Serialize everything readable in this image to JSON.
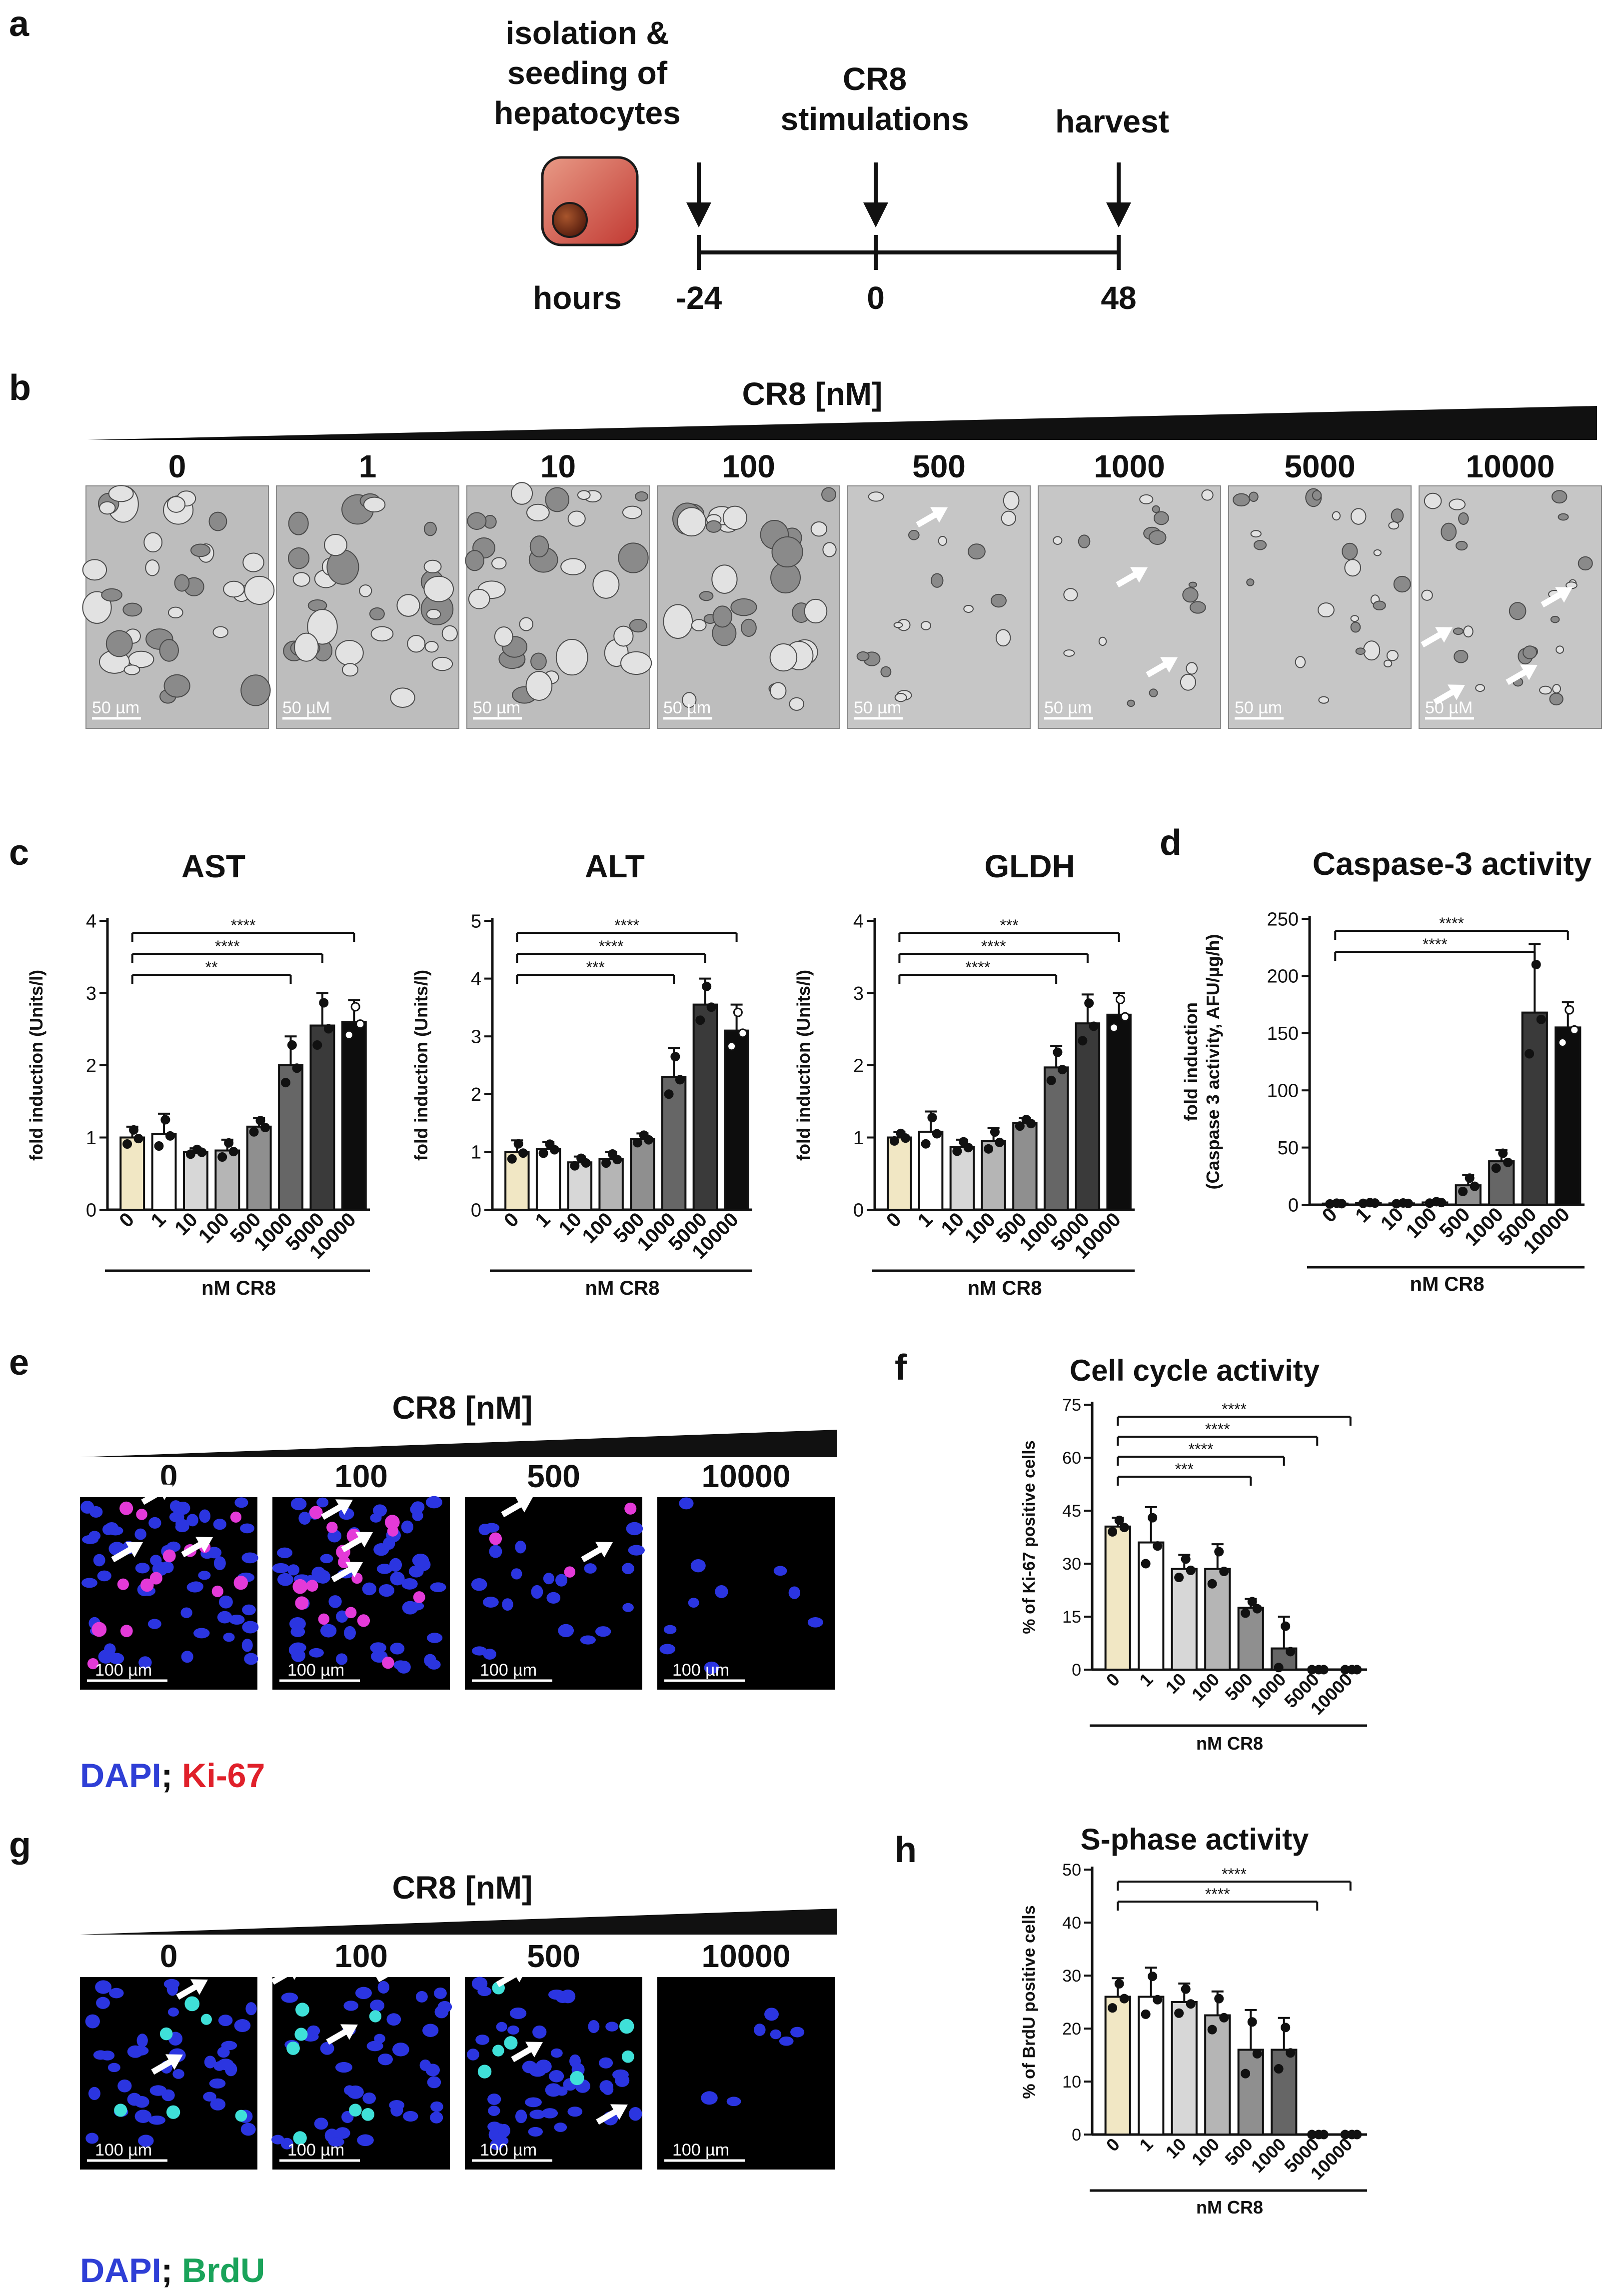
{
  "panels": {
    "a": {
      "letter": "a",
      "isolation_label": [
        "isolation &",
        "seeding of",
        "hepatocytes"
      ],
      "stim_label": [
        "CR8",
        "stimulations"
      ],
      "harvest_label": "harvest",
      "hours_label": "hours",
      "timepoints": [
        "-24",
        "0",
        "48"
      ]
    },
    "b": {
      "letter": "b",
      "title": "CR8 [nM]",
      "concentrations": [
        "0",
        "1",
        "10",
        "100",
        "500",
        "1000",
        "5000",
        "10000"
      ],
      "scalebars": [
        "50 µm",
        "50 µM",
        "50 µm",
        "50 µm",
        "50 µm",
        "50 µm",
        "50 µm",
        "50 µM"
      ]
    },
    "c": {
      "letter": "c"
    },
    "d": {
      "letter": "d"
    },
    "e": {
      "letter": "e",
      "title": "CR8 [nM]",
      "concentrations": [
        "0",
        "100",
        "500",
        "10000"
      ],
      "scalebar": "100 µm",
      "legend": {
        "stain1": "DAPI",
        "sep": ";",
        "stain2": "Ki-67",
        "color1": "#2f3fd6",
        "color2": "#e0202a"
      }
    },
    "f": {
      "letter": "f"
    },
    "g": {
      "letter": "g",
      "title": "CR8 [nM]",
      "concentrations": [
        "0",
        "100",
        "500",
        "10000"
      ],
      "scalebar": "100 µm",
      "legend": {
        "stain1": "DAPI",
        "sep": ";",
        "stain2": "BrdU",
        "color1": "#2f3fd6",
        "color2": "#1aa35a"
      }
    },
    "h": {
      "letter": "h"
    }
  },
  "chart_data": [
    {
      "id": "ast",
      "type": "bar",
      "title": "AST",
      "ylabel": "fold induction (Units/l)",
      "xlabel": "nM CR8",
      "categories": [
        "0",
        "1",
        "10",
        "100",
        "500",
        "1000",
        "5000",
        "10000"
      ],
      "values": [
        1.0,
        1.05,
        0.8,
        0.82,
        1.15,
        2.0,
        2.55,
        2.6
      ],
      "errors": [
        0.15,
        0.28,
        0.05,
        0.15,
        0.12,
        0.4,
        0.45,
        0.3
      ],
      "ylim": [
        0,
        4
      ],
      "yticks": [
        0,
        1,
        2,
        3,
        4
      ],
      "significance": [
        {
          "from": "0",
          "to": "1000",
          "label": "**"
        },
        {
          "from": "0",
          "to": "5000",
          "label": "****"
        },
        {
          "from": "0",
          "to": "10000",
          "label": "****"
        }
      ]
    },
    {
      "id": "alt",
      "type": "bar",
      "title": "ALT",
      "ylabel": "fold induction (Units/l)",
      "xlabel": "nM CR8",
      "categories": [
        "0",
        "1",
        "10",
        "100",
        "500",
        "1000",
        "5000",
        "10000"
      ],
      "values": [
        1.0,
        1.05,
        0.82,
        0.88,
        1.22,
        2.3,
        3.55,
        3.1
      ],
      "errors": [
        0.2,
        0.12,
        0.1,
        0.12,
        0.1,
        0.5,
        0.45,
        0.45
      ],
      "ylim": [
        0,
        5
      ],
      "yticks": [
        0,
        1,
        2,
        3,
        4,
        5
      ],
      "significance": [
        {
          "from": "0",
          "to": "1000",
          "label": "***"
        },
        {
          "from": "0",
          "to": "5000",
          "label": "****"
        },
        {
          "from": "0",
          "to": "10000",
          "label": "****"
        }
      ]
    },
    {
      "id": "gldh",
      "type": "bar",
      "title": "GLDH",
      "ylabel": "fold induction (Units/l)",
      "xlabel": "nM CR8",
      "categories": [
        "0",
        "1",
        "10",
        "100",
        "500",
        "1000",
        "5000",
        "10000"
      ],
      "values": [
        1.0,
        1.08,
        0.87,
        0.95,
        1.2,
        1.97,
        2.58,
        2.7
      ],
      "errors": [
        0.08,
        0.28,
        0.1,
        0.18,
        0.07,
        0.3,
        0.4,
        0.3
      ],
      "ylim": [
        0,
        4
      ],
      "yticks": [
        0,
        1,
        2,
        3,
        4
      ],
      "significance": [
        {
          "from": "0",
          "to": "1000",
          "label": "****"
        },
        {
          "from": "0",
          "to": "5000",
          "label": "****"
        },
        {
          "from": "0",
          "to": "10000",
          "label": "***"
        }
      ]
    },
    {
      "id": "caspase",
      "type": "bar",
      "title": "Caspase-3 activity",
      "ylabel": [
        "fold induction",
        "(Caspase 3 activity, AFU/µg/h)"
      ],
      "xlabel": "nM CR8",
      "categories": [
        "0",
        "1",
        "10",
        "100",
        "500",
        "1000",
        "5000",
        "10000"
      ],
      "values": [
        1,
        1.5,
        1.2,
        2,
        17,
        38,
        168,
        155
      ],
      "errors": [
        0.5,
        0.5,
        0.5,
        1,
        9,
        10,
        60,
        22
      ],
      "ylim": [
        0,
        250
      ],
      "yticks": [
        0,
        50,
        100,
        150,
        200,
        250
      ],
      "significance": [
        {
          "from": "0",
          "to": "5000",
          "label": "****"
        },
        {
          "from": "0",
          "to": "10000",
          "label": "****"
        }
      ]
    },
    {
      "id": "ki67",
      "type": "bar",
      "title": "Cell cycle activity",
      "ylabel": "% of Ki-67 positive cells",
      "xlabel": "nM CR8",
      "categories": [
        "0",
        "1",
        "10",
        "100",
        "500",
        "1000",
        "5000",
        "10000"
      ],
      "values": [
        40.5,
        36,
        28.5,
        28.5,
        17.5,
        6,
        0,
        0
      ],
      "errors": [
        2.5,
        10,
        4,
        7,
        2.5,
        9,
        0,
        0
      ],
      "ylim": [
        0,
        75
      ],
      "yticks": [
        0,
        15,
        30,
        45,
        60,
        75
      ],
      "significance": [
        {
          "from": "0",
          "to": "500",
          "label": "***"
        },
        {
          "from": "0",
          "to": "1000",
          "label": "****"
        },
        {
          "from": "0",
          "to": "5000",
          "label": "****"
        },
        {
          "from": "0",
          "to": "10000",
          "label": "****"
        }
      ]
    },
    {
      "id": "brdu",
      "type": "bar",
      "title": "S-phase activity",
      "ylabel": "% of BrdU positive cells",
      "xlabel": "nM CR8",
      "categories": [
        "0",
        "1",
        "10",
        "100",
        "500",
        "1000",
        "5000",
        "10000"
      ],
      "values": [
        26,
        26,
        25,
        22.5,
        16,
        16,
        0,
        0
      ],
      "errors": [
        3.5,
        5.5,
        3.5,
        4.5,
        7.5,
        6,
        0,
        0
      ],
      "ylim": [
        0,
        50
      ],
      "yticks": [
        0,
        10,
        20,
        30,
        40,
        50
      ],
      "significance": [
        {
          "from": "0",
          "to": "5000",
          "label": "****"
        },
        {
          "from": "0",
          "to": "10000",
          "label": "****"
        }
      ]
    }
  ],
  "colors": {
    "bars": [
      "#f1e7c4",
      "#ffffff",
      "#d7d7d7",
      "#b5b5b5",
      "#8f8f8f",
      "#666666",
      "#3a3a3a",
      "#0d0d0d"
    ],
    "cell_body": "#c9463f",
    "nucleus": "#6e2a1a"
  },
  "icons": {
    "hepatocyte": "hepatocyte-cell-icon",
    "arrow": "down-arrow-icon",
    "pointer": "white-arrow-icon"
  }
}
